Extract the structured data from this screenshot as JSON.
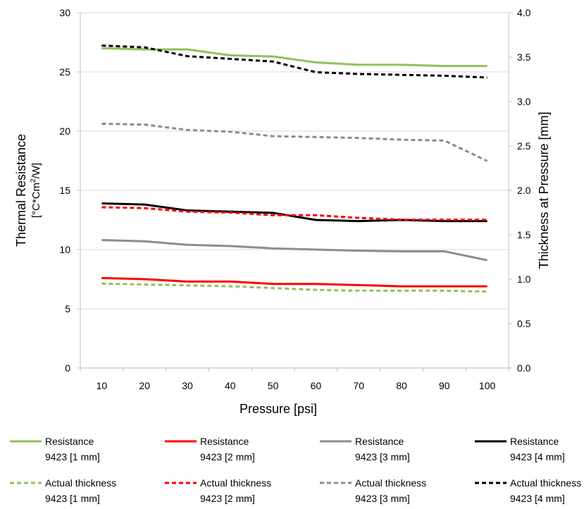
{
  "chart_data": {
    "type": "line",
    "xlabel": "Pressure [psi]",
    "ylabel_left_line1": "Thermal Resistance",
    "ylabel_left_line2_pre": "[°C*Cm",
    "ylabel_left_line2_sup": "2",
    "ylabel_left_line2_post": "/W]",
    "ylabel_right": "Thickness at Pressure [mm]",
    "x": [
      10,
      20,
      30,
      40,
      50,
      60,
      70,
      80,
      90,
      100
    ],
    "x_tick_labels": [
      "10",
      "20",
      "30",
      "40",
      "50",
      "60",
      "70",
      "80",
      "90",
      "100"
    ],
    "ylim_left": [
      0,
      30
    ],
    "ylim_right": [
      0,
      4.0
    ],
    "y_left_ticks": [
      "0",
      "5",
      "10",
      "15",
      "20",
      "25",
      "30"
    ],
    "y_right_ticks": [
      "0.0",
      "0.5",
      "1.0",
      "1.5",
      "2.0",
      "2.5",
      "3.0",
      "3.5",
      "4.0"
    ],
    "grid": "horizontal",
    "legend_position": "bottom",
    "series": [
      {
        "label_line1": "Resistance",
        "label_line2": "9423 [1 mm]",
        "axis": "left",
        "style": "solid",
        "color": "#92c05a",
        "values": [
          27.0,
          26.9,
          26.9,
          26.4,
          26.3,
          25.8,
          25.6,
          25.6,
          25.5,
          25.5
        ]
      },
      {
        "label_line1": "Resistance",
        "label_line2": "9423 [2 mm]",
        "axis": "left",
        "style": "solid",
        "color": "#ff0000",
        "values": [
          7.6,
          7.5,
          7.3,
          7.3,
          7.1,
          7.1,
          7.0,
          6.9,
          6.9,
          6.9
        ]
      },
      {
        "label_line1": "Resistance",
        "label_line2": "9423 [3 mm]",
        "axis": "left",
        "style": "solid",
        "color": "#8c8c8c",
        "values": [
          10.8,
          10.7,
          10.4,
          10.3,
          10.1,
          10.0,
          9.9,
          9.85,
          9.85,
          9.1
        ]
      },
      {
        "label_line1": "Resistance",
        "label_line2": "9423 [4 mm]",
        "axis": "left",
        "style": "solid",
        "color": "#000000",
        "values": [
          13.9,
          13.8,
          13.3,
          13.2,
          13.1,
          12.5,
          12.4,
          12.5,
          12.4,
          12.4
        ]
      },
      {
        "label_line1": "Actual thickness",
        "label_line2": "9423 [1 mm]",
        "axis": "right",
        "style": "dashed",
        "color": "#92c05a",
        "values": [
          0.95,
          0.94,
          0.93,
          0.92,
          0.9,
          0.88,
          0.87,
          0.87,
          0.87,
          0.86
        ]
      },
      {
        "label_line1": "Actual thickness",
        "label_line2": "9423 [2 mm]",
        "axis": "right",
        "style": "dashed",
        "color": "#ff0000",
        "values": [
          1.81,
          1.8,
          1.76,
          1.75,
          1.72,
          1.72,
          1.69,
          1.67,
          1.67,
          1.67
        ]
      },
      {
        "label_line1": "Actual thickness",
        "label_line2": "9423 [3 mm]",
        "axis": "right",
        "style": "dashed",
        "color": "#8c8c8c",
        "values": [
          2.75,
          2.74,
          2.68,
          2.66,
          2.61,
          2.6,
          2.59,
          2.57,
          2.56,
          2.33
        ]
      },
      {
        "label_line1": "Actual thickness",
        "label_line2": "9423 [4 mm]",
        "axis": "right",
        "style": "dashed",
        "color": "#000000",
        "values": [
          3.63,
          3.61,
          3.51,
          3.48,
          3.45,
          3.33,
          3.31,
          3.3,
          3.29,
          3.27
        ]
      }
    ]
  }
}
